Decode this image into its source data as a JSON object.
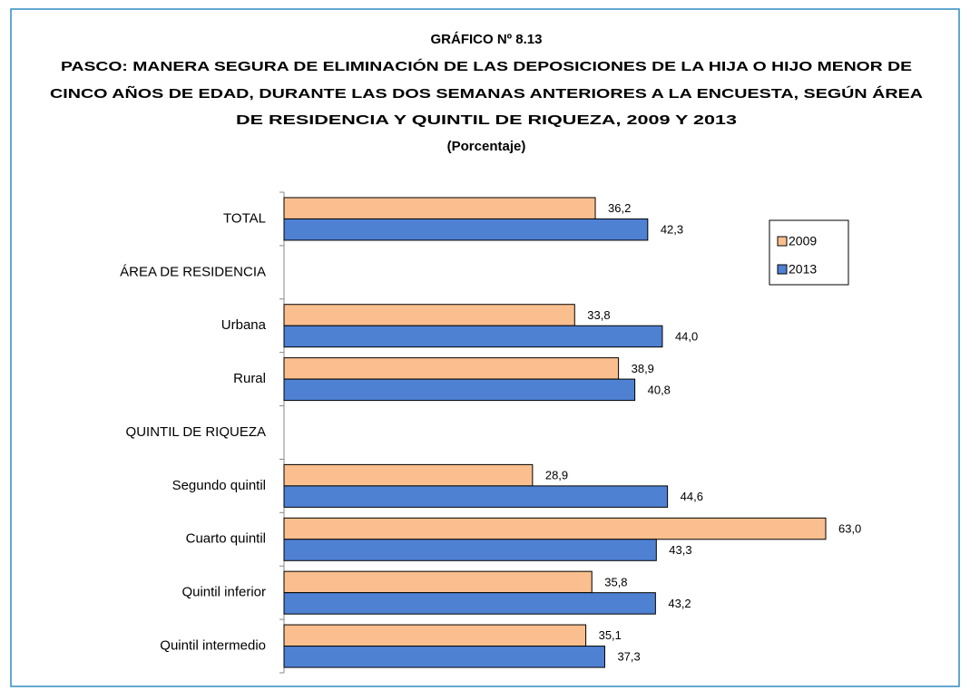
{
  "chart_data": {
    "type": "bar",
    "orientation": "horizontal",
    "title": [
      "GRÁFICO Nº 8.13",
      "PASCO: MANERA SEGURA DE ELIMINACIÓN  DE LAS DEPOSICIONES DE LA HIJA O HIJO MENOR DE",
      "CINCO AÑOS DE EDAD, DURANTE  LAS DOS SEMANAS ANTERIORES A LA ENCUESTA, SEGÚN ÁREA",
      "DE RESIDENCIA Y QUINTIL DE RIQUEZA, 2009 Y 2013"
    ],
    "subtitle": "(Porcentaje)",
    "categories": [
      "TOTAL",
      "ÁREA DE RESIDENCIA",
      "Urbana",
      "Rural",
      "QUINTIL DE RIQUEZA",
      "Segundo quintil",
      "Cuarto quintil",
      "Quintil inferior",
      "Quintil intermedio"
    ],
    "series": [
      {
        "name": "2009",
        "color": "#fbbf8f",
        "values": [
          36.2,
          null,
          33.8,
          38.9,
          null,
          28.9,
          63.0,
          35.8,
          35.1
        ],
        "value_labels": [
          "36,2",
          null,
          "33,8",
          "38,9",
          null,
          "28,9",
          "63,0",
          "35,8",
          "35,1"
        ]
      },
      {
        "name": "2013",
        "color": "#4f81d3",
        "values": [
          42.3,
          null,
          44.0,
          40.8,
          null,
          44.6,
          43.3,
          43.2,
          37.3
        ],
        "value_labels": [
          "42,3",
          null,
          "44,0",
          "40,8",
          null,
          "44,6",
          "43,3",
          "43,2",
          "37,3"
        ]
      }
    ],
    "legend": "right"
  }
}
